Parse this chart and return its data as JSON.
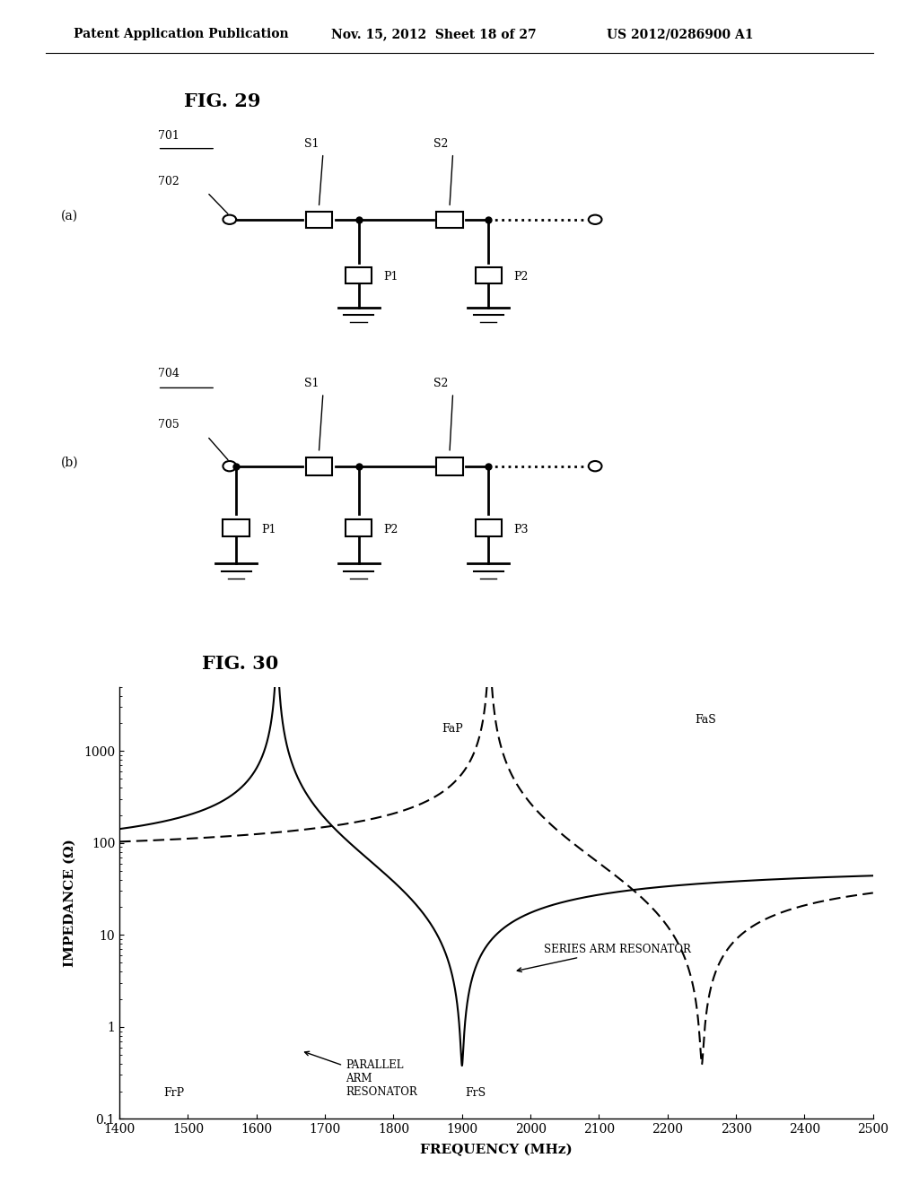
{
  "title_header": "Patent Application Publication",
  "date_header": "Nov. 15, 2012  Sheet 18 of 27",
  "patent_header": "US 2012/0286900 A1",
  "fig29_title": "FIG. 29",
  "fig30_title": "FIG. 30",
  "background_color": "#ffffff",
  "text_color": "#000000",
  "xlabel": "FREQUENCY (MHz)",
  "ylabel": "IMPEDANCE (Ω)",
  "xmin": 1400,
  "xmax": 2500,
  "yticks": [
    0.1,
    1,
    10,
    100,
    1000
  ],
  "xticks": [
    1400,
    1500,
    1600,
    1700,
    1800,
    1900,
    2000,
    2100,
    2200,
    2300,
    2400,
    2500
  ]
}
